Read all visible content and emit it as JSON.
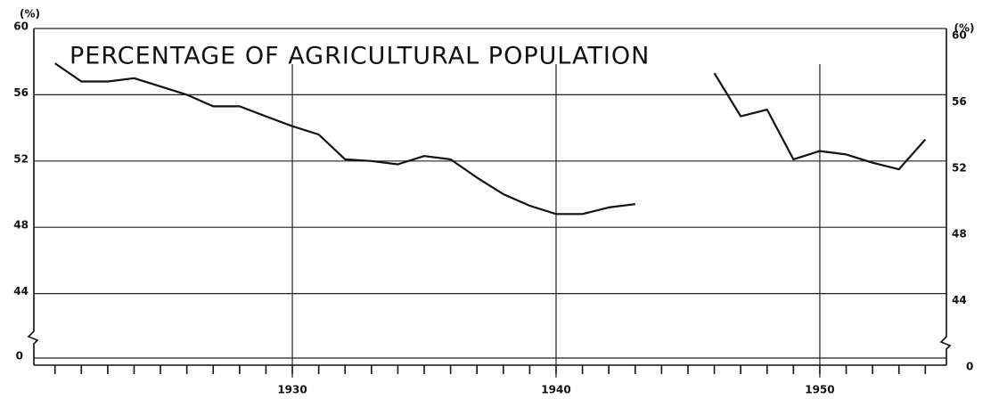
{
  "chart_data": {
    "type": "line",
    "title": "PERCENTAGE OF AGRICULTURAL POPULATION",
    "y_unit": "(%)",
    "x": [
      1921,
      1922,
      1923,
      1924,
      1925,
      1926,
      1927,
      1928,
      1929,
      1930,
      1931,
      1932,
      1933,
      1934,
      1935,
      1936,
      1937,
      1938,
      1939,
      1940,
      1941,
      1942,
      1943,
      1944,
      1945,
      1946,
      1947,
      1948,
      1949,
      1950,
      1951,
      1952,
      1953,
      1954
    ],
    "series": [
      {
        "color": "#111111",
        "values": [
          57.9,
          56.8,
          56.8,
          57.0,
          56.5,
          56.0,
          55.3,
          55.3,
          54.7,
          54.1,
          53.6,
          52.1,
          52.0,
          51.8,
          52.3,
          52.1,
          51.0,
          50.0,
          49.3,
          48.8,
          48.8,
          49.2,
          49.4,
          null,
          null,
          57.3,
          54.7,
          55.1,
          52.1,
          52.6,
          52.4,
          51.9,
          51.5,
          53.3
        ]
      }
    ],
    "xlim": [
      1920.2,
      1954.8
    ],
    "xticks": [
      1930,
      1940,
      1950
    ],
    "ylim": [
      42,
      60
    ],
    "yticks": [
      44,
      48,
      52,
      56,
      60
    ],
    "broken_axis_tick": 0,
    "grid": true
  }
}
